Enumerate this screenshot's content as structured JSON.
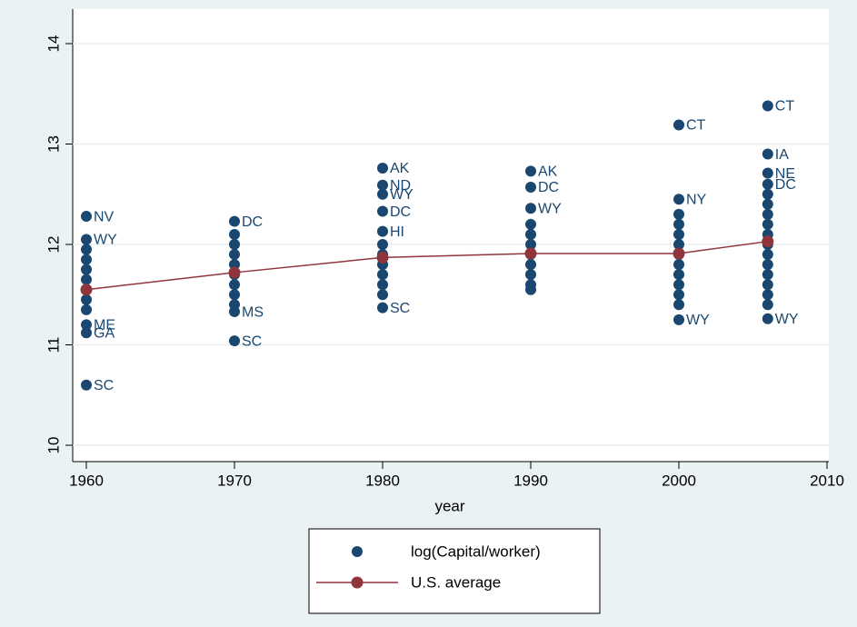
{
  "chart_data": {
    "type": "scatter",
    "xlabel": "year",
    "xlim": [
      1960,
      2010
    ],
    "xticks": [
      1960,
      1970,
      1980,
      1990,
      2000,
      2010
    ],
    "ylim": [
      10,
      14
    ],
    "yticks": [
      10,
      11,
      12,
      13,
      14
    ],
    "grid": true,
    "series": [
      {
        "name": "log(Capital/worker)",
        "color": "#1a476f",
        "x": [
          1960,
          1960,
          1960,
          1960,
          1960,
          1960,
          1960,
          1960,
          1960,
          1960,
          1960,
          1960,
          1970,
          1970,
          1970,
          1970,
          1970,
          1970,
          1970,
          1970,
          1970,
          1970,
          1970,
          1980,
          1980,
          1980,
          1980,
          1980,
          1980,
          1980,
          1980,
          1980,
          1980,
          1980,
          1980,
          1990,
          1990,
          1990,
          1990,
          1990,
          1990,
          1990,
          1990,
          1990,
          1990,
          1990,
          2000,
          2000,
          2000,
          2000,
          2000,
          2000,
          2000,
          2000,
          2000,
          2000,
          2000,
          2000,
          2000,
          2006,
          2006,
          2006,
          2006,
          2006,
          2006,
          2006,
          2006,
          2006,
          2006,
          2006,
          2006,
          2006,
          2006,
          2006,
          2006,
          2006
        ],
        "values": [
          12.28,
          12.05,
          11.2,
          11.12,
          10.6,
          11.95,
          11.85,
          11.75,
          11.65,
          11.55,
          11.45,
          11.35,
          12.23,
          11.33,
          11.04,
          12.1,
          12.0,
          11.9,
          11.8,
          11.7,
          11.6,
          11.5,
          11.4,
          12.76,
          12.59,
          12.5,
          12.33,
          12.13,
          11.37,
          12.0,
          11.9,
          11.8,
          11.7,
          11.6,
          11.5,
          12.73,
          12.57,
          12.36,
          12.2,
          12.1,
          12.0,
          11.9,
          11.8,
          11.7,
          11.6,
          11.55,
          13.19,
          12.45,
          11.25,
          12.3,
          12.2,
          12.1,
          12.0,
          11.9,
          11.8,
          11.7,
          11.6,
          11.5,
          11.4,
          13.38,
          12.9,
          12.71,
          12.6,
          11.26,
          12.5,
          12.4,
          12.3,
          12.2,
          12.1,
          12.0,
          11.9,
          11.8,
          11.7,
          11.6,
          11.5,
          11.4
        ],
        "point_labels": [
          "NV",
          "WY",
          "ME",
          "GA",
          "SC",
          null,
          null,
          null,
          null,
          null,
          null,
          null,
          "DC",
          "MS",
          "SC",
          null,
          null,
          null,
          null,
          null,
          null,
          null,
          null,
          "AK",
          "ND",
          "WY",
          "DC",
          "HI",
          "SC",
          null,
          null,
          null,
          null,
          null,
          null,
          "AK",
          "DC",
          "WY",
          null,
          null,
          null,
          null,
          null,
          null,
          null,
          null,
          "CT",
          "NY",
          "WY",
          null,
          null,
          null,
          null,
          null,
          null,
          null,
          null,
          null,
          null,
          "CT",
          "IA",
          "NE",
          "DC",
          "WY",
          null,
          null,
          null,
          null,
          null,
          null,
          null,
          null,
          null,
          null,
          null,
          null
        ]
      },
      {
        "name": "U.S. average",
        "color": "#90353b",
        "x": [
          1960,
          1970,
          1980,
          1990,
          2000,
          2006
        ],
        "values": [
          11.55,
          11.72,
          11.87,
          11.91,
          11.91,
          12.03
        ]
      }
    ]
  }
}
